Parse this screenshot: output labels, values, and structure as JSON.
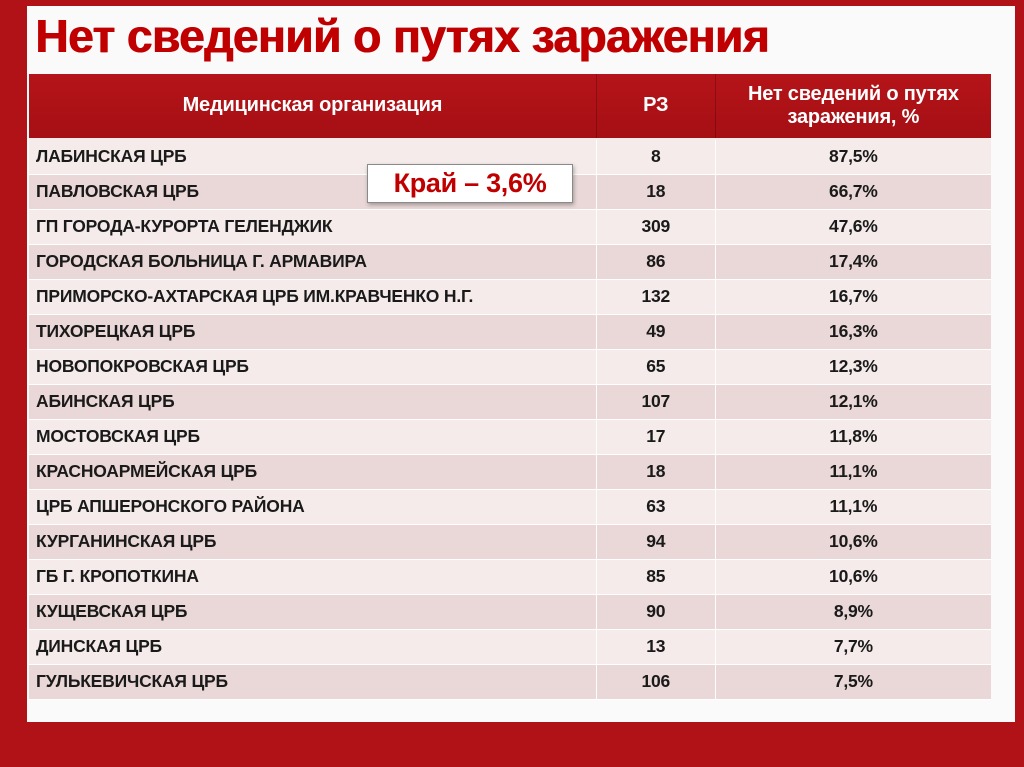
{
  "title": "Нет сведений о путях заражения",
  "callout": {
    "text": "Край – 3,6%"
  },
  "table": {
    "headers": [
      "Медицинская организация",
      "РЗ",
      "Нет сведений о путях заражения, %"
    ],
    "rows": [
      [
        "ЛАБИНСКАЯ ЦРБ",
        "8",
        "87,5%"
      ],
      [
        "ПАВЛОВСКАЯ ЦРБ",
        "18",
        "66,7%"
      ],
      [
        "ГП ГОРОДА-КУРОРТА ГЕЛЕНДЖИК",
        "309",
        "47,6%"
      ],
      [
        "ГОРОДСКАЯ БОЛЬНИЦА Г. АРМАВИРА",
        "86",
        "17,4%"
      ],
      [
        "ПРИМОРСКО-АХТАРСКАЯ ЦРБ ИМ.КРАВЧЕНКО Н.Г.",
        "132",
        "16,7%"
      ],
      [
        "ТИХОРЕЦКАЯ ЦРБ",
        "49",
        "16,3%"
      ],
      [
        "НОВОПОКРОВСКАЯ ЦРБ",
        "65",
        "12,3%"
      ],
      [
        "АБИНСКАЯ ЦРБ",
        "107",
        "12,1%"
      ],
      [
        "МОСТОВСКАЯ ЦРБ",
        "17",
        "11,8%"
      ],
      [
        "КРАСНОАРМЕЙСКАЯ ЦРБ",
        "18",
        "11,1%"
      ],
      [
        "ЦРБ АПШЕРОНСКОГО РАЙОНА",
        "63",
        "11,1%"
      ],
      [
        "КУРГАНИНСКАЯ ЦРБ",
        "94",
        "10,6%"
      ],
      [
        "ГБ Г. КРОПОТКИНА",
        "85",
        "10,6%"
      ],
      [
        "КУЩЕВСКАЯ ЦРБ",
        "90",
        "8,9%"
      ],
      [
        "ДИНСКАЯ ЦРБ",
        "13",
        "7,7%"
      ],
      [
        "ГУЛЬКЕВИЧСКАЯ ЦРБ",
        "106",
        "7,5%"
      ]
    ]
  },
  "colors": {
    "frame": "#b01218",
    "header_bg": "#b0121a",
    "title_text": "#c00000",
    "row_light": "#f4ebea",
    "row_dark": "#e9d8d7",
    "callout_text": "#c00000",
    "header_text": "#ffffff",
    "body_text": "#1a1a1a"
  }
}
